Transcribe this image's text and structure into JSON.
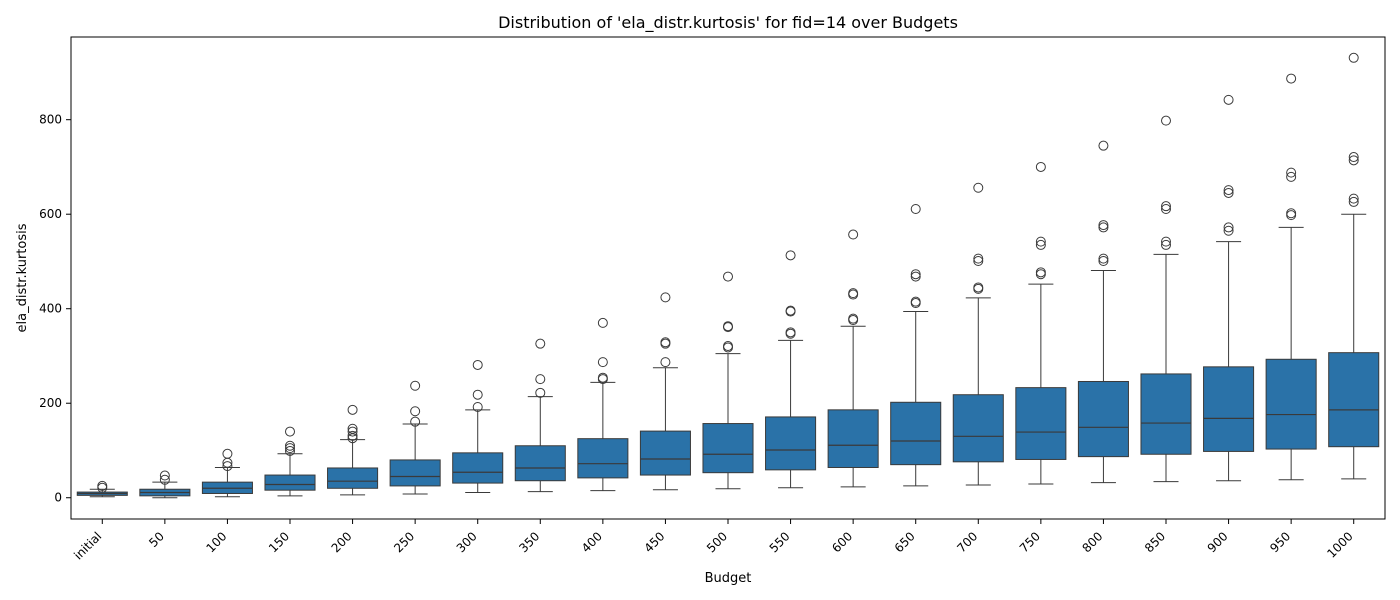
{
  "chart_data": {
    "type": "box",
    "title": "Distribution of 'ela_distr.kurtosis' for fid=14 over Budgets",
    "xlabel": "Budget",
    "ylabel": "ela_distr.kurtosis",
    "ylim": [
      -45,
      975
    ],
    "yticks": [
      0,
      200,
      400,
      600,
      800
    ],
    "box_color": "#2a72a8",
    "line_color": "#3a3a3a",
    "grid": false,
    "categories": [
      "initial",
      "50",
      "100",
      "150",
      "200",
      "250",
      "300",
      "350",
      "400",
      "450",
      "500",
      "550",
      "600",
      "650",
      "700",
      "750",
      "800",
      "850",
      "900",
      "950",
      "1000"
    ],
    "boxes": [
      {
        "min": 2,
        "q1": 5,
        "median": 9,
        "q3": 12,
        "max": 18,
        "outliers": [
          21,
          25
        ]
      },
      {
        "min": 0,
        "q1": 4,
        "median": 11,
        "q3": 18,
        "max": 33,
        "outliers": [
          38,
          47
        ]
      },
      {
        "min": 2,
        "q1": 9,
        "median": 20,
        "q3": 33,
        "max": 64,
        "outliers": [
          67,
          74,
          93
        ]
      },
      {
        "min": 4,
        "q1": 16,
        "median": 28,
        "q3": 48,
        "max": 93,
        "outliers": [
          99,
          105,
          110,
          140
        ]
      },
      {
        "min": 6,
        "q1": 20,
        "median": 35,
        "q3": 63,
        "max": 123,
        "outliers": [
          126,
          131,
          140,
          146,
          186
        ]
      },
      {
        "min": 8,
        "q1": 25,
        "median": 45,
        "q3": 80,
        "max": 156,
        "outliers": [
          161,
          183,
          237
        ]
      },
      {
        "min": 11,
        "q1": 31,
        "median": 54,
        "q3": 95,
        "max": 186,
        "outliers": [
          192,
          218,
          281
        ]
      },
      {
        "min": 13,
        "q1": 36,
        "median": 63,
        "q3": 110,
        "max": 214,
        "outliers": [
          222,
          251,
          326
        ]
      },
      {
        "min": 15,
        "q1": 42,
        "median": 72,
        "q3": 125,
        "max": 244,
        "outliers": [
          251,
          254,
          287,
          370
        ]
      },
      {
        "min": 17,
        "q1": 48,
        "median": 82,
        "q3": 141,
        "max": 275,
        "outliers": [
          287,
          326,
          329,
          424
        ]
      },
      {
        "min": 19,
        "q1": 53,
        "median": 92,
        "q3": 157,
        "max": 305,
        "outliers": [
          318,
          321,
          361,
          363,
          468
        ]
      },
      {
        "min": 21,
        "q1": 59,
        "median": 101,
        "q3": 171,
        "max": 333,
        "outliers": [
          347,
          350,
          394,
          396,
          513
        ]
      },
      {
        "min": 23,
        "q1": 64,
        "median": 111,
        "q3": 186,
        "max": 363,
        "outliers": [
          376,
          379,
          430,
          433,
          557
        ]
      },
      {
        "min": 25,
        "q1": 70,
        "median": 120,
        "q3": 202,
        "max": 394,
        "outliers": [
          412,
          415,
          468,
          473,
          611
        ]
      },
      {
        "min": 27,
        "q1": 76,
        "median": 130,
        "q3": 218,
        "max": 423,
        "outliers": [
          442,
          445,
          501,
          506,
          656
        ]
      },
      {
        "min": 29,
        "q1": 81,
        "median": 139,
        "q3": 233,
        "max": 452,
        "outliers": [
          473,
          477,
          535,
          542,
          700
        ]
      },
      {
        "min": 32,
        "q1": 87,
        "median": 149,
        "q3": 246,
        "max": 481,
        "outliers": [
          501,
          506,
          572,
          577,
          745
        ]
      },
      {
        "min": 34,
        "q1": 92,
        "median": 158,
        "q3": 262,
        "max": 515,
        "outliers": [
          535,
          542,
          611,
          617,
          798
        ]
      },
      {
        "min": 36,
        "q1": 98,
        "median": 168,
        "q3": 277,
        "max": 542,
        "outliers": [
          565,
          572,
          645,
          651,
          842
        ]
      },
      {
        "min": 38,
        "q1": 103,
        "median": 176,
        "q3": 293,
        "max": 572,
        "outliers": [
          598,
          602,
          679,
          688,
          887
        ]
      },
      {
        "min": 40,
        "q1": 108,
        "median": 186,
        "q3": 307,
        "max": 600,
        "outliers": [
          626,
          633,
          714,
          721,
          931
        ]
      }
    ]
  }
}
